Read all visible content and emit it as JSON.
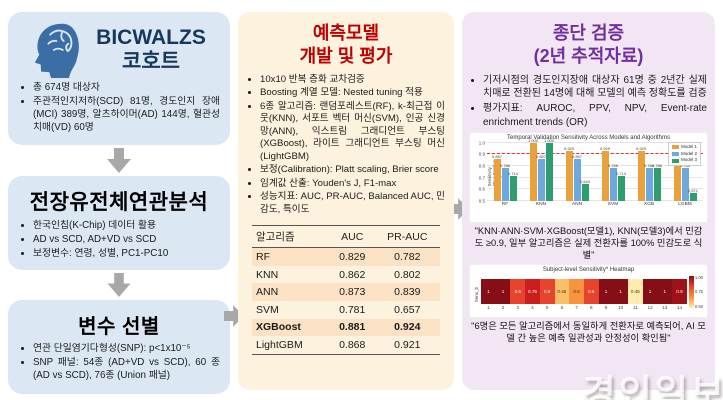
{
  "left": {
    "cohort": {
      "title_line1": "BICWALZS",
      "title_line2": "코호트",
      "bullets": [
        "총 674명 대상자",
        "주관적인지저하(SCD) 81명, 경도인지 장애(MCI)  389명,  알츠하이머(AD) 144명, 혈관성치매(VD) 60명"
      ]
    },
    "gwas": {
      "title": "전장유전체연관분석",
      "bullets": [
        "한국인칩(K-Chip) 데이터 활용",
        "AD vs SCD, AD+VD vs SCD",
        "보정변수: 연령, 성별, PC1-PC10"
      ]
    },
    "selection": {
      "title": "변수 선별",
      "bullets": [
        "연관 단일염기다형성(SNP): p<1x10⁻⁵",
        "SNP 패널: 54종 (AD+VD vs SCD), 60 종 (AD vs SCD), 76종 (Union 패널)"
      ]
    }
  },
  "middle": {
    "title_line1": "예측모델",
    "title_line2": "개발 및 평가",
    "bullets": [
      "10x10 반복 층화 교차검증",
      "Boosting 계열 모델: Nested tuning 적용",
      "6종 알고리즘: 랜덤포레스트(RF), k-최근접 이웃(KNN), 서포트 벡터 머신(SVM), 인공 신경망(ANN), 익스트림 그래디언트 부스팅(XGBoost), 라이트 그래디언트 부스팅 머신(LightGBM)",
      "보정(Calibration): Platt scaling, Brier score",
      "임계값 산출: Youden's J, F1-max",
      "성능지표: AUC, PR-AUC, Balanced AUC, 민감도, 특이도"
    ],
    "table": {
      "headers": [
        "알고리즘",
        "AUC",
        "PR-AUC"
      ],
      "rows": [
        {
          "algo": "RF",
          "auc": "0.829",
          "pr_auc": "0.782",
          "shaded": true,
          "bold": false
        },
        {
          "algo": "KNN",
          "auc": "0.862",
          "pr_auc": "0.802",
          "shaded": false,
          "bold": false
        },
        {
          "algo": "ANN",
          "auc": "0.873",
          "pr_auc": "0.839",
          "shaded": true,
          "bold": false
        },
        {
          "algo": "SVM",
          "auc": "0.781",
          "pr_auc": "0.657",
          "shaded": false,
          "bold": false
        },
        {
          "algo": "XGBoost",
          "auc": "0.881",
          "pr_auc": "0.924",
          "shaded": true,
          "bold": true
        },
        {
          "algo": "LightGBM",
          "auc": "0.868",
          "pr_auc": "0.921",
          "shaded": false,
          "bold": false
        }
      ]
    }
  },
  "right": {
    "title_line1": "종단 검증",
    "title_line2": "(2년 추적자료)",
    "bullets": [
      "기저시점의 경도인지장애 대상자 61명 중 2년간 실제 치매로 전환된 14명에 대해 모델의 예측 정확도를 검증",
      "평가지표: AUROC, PPV, NPV, Event-rate enrichment trends (OR)"
    ],
    "caption1": "\"KNN·ANN·SVM·XGBoost(모델1), KNN(모델3)에서 민감도 ≥0.9, 일부 알고리즘은 실제 전환자를 100% 민감도로 식별\"",
    "caption2": "\"6명은 모든 알고리즘에서 동일하게 전환자로 예측되어, AI 모델 간 높은 예측 일관성과 안정성이 확인됨\"",
    "watermark": "경인일보"
  },
  "colors": {
    "left_box_bg": "#dbe8f4",
    "mid_panel_bg": "#fdf2dd",
    "right_panel_bg": "#f3e6f4",
    "mid_title": "#c00000",
    "right_title": "#7030a0",
    "cohort_title": "#17375e",
    "arrow_gray": "#a8a8a8",
    "table_shade": "#fbe2c5"
  },
  "chart_data": [
    {
      "type": "bar",
      "title": "Temporal Validation Sensitivity Across Models and Algorithms",
      "ylabel": "Sensitivity (True Positive Rate)",
      "categories": [
        "RF",
        "KNN",
        "ANN",
        "SVM",
        "XGB",
        "LGBM"
      ],
      "series": [
        {
          "name": "Model 1",
          "color": "#e9a23b",
          "values": [
            0.857,
            1.0,
            0.929,
            0.929,
            0.929,
            0.857
          ]
        },
        {
          "name": "Model 2",
          "color": "#6fa8dc",
          "values": [
            0.786,
            0.857,
            0.857,
            0.786,
            0.786,
            0.786
          ]
        },
        {
          "name": "Model 3",
          "color": "#2f9e6e",
          "values": [
            0.714,
            1.0,
            0.643,
            0.714,
            0.786,
            0.571
          ]
        }
      ],
      "ylim": [
        0.5,
        1.0
      ],
      "yticks": [
        0.5,
        0.6,
        0.7,
        0.8,
        0.9,
        1.0
      ],
      "ref_line": {
        "y": 0.9,
        "color": "#e03131",
        "style": "dashed"
      },
      "legend_position": "top-right",
      "grid": true
    },
    {
      "type": "heatmap",
      "title": "Subject-level Sensitivity* Heatmap",
      "ylabel": "Sens_b",
      "x": [
        "1",
        "2",
        "3",
        "4",
        "5",
        "6",
        "7",
        "8",
        "9",
        "10",
        "11",
        "12",
        "13",
        "14"
      ],
      "values": [
        1,
        1,
        0.6,
        0.75,
        0.6,
        0.45,
        0.5,
        0.6,
        1,
        1,
        0.45,
        1,
        1,
        0.9
      ],
      "labels": [
        "1",
        "1",
        "0.6",
        "0.75",
        "0.6",
        "0.45",
        "0.5",
        "0.6",
        "1",
        "1",
        "0.45",
        "1",
        "1",
        "0.9"
      ],
      "cell_colors": [
        "#860e16",
        "#860e16",
        "#e8432c",
        "#c9201d",
        "#e8432c",
        "#fbbf67",
        "#f8933f",
        "#e8432c",
        "#860e16",
        "#860e16",
        "#fdecae",
        "#860e16",
        "#860e16",
        "#9d1118"
      ],
      "colorbar_ticks": [
        "1.00",
        "0.75",
        "0.50"
      ]
    }
  ]
}
